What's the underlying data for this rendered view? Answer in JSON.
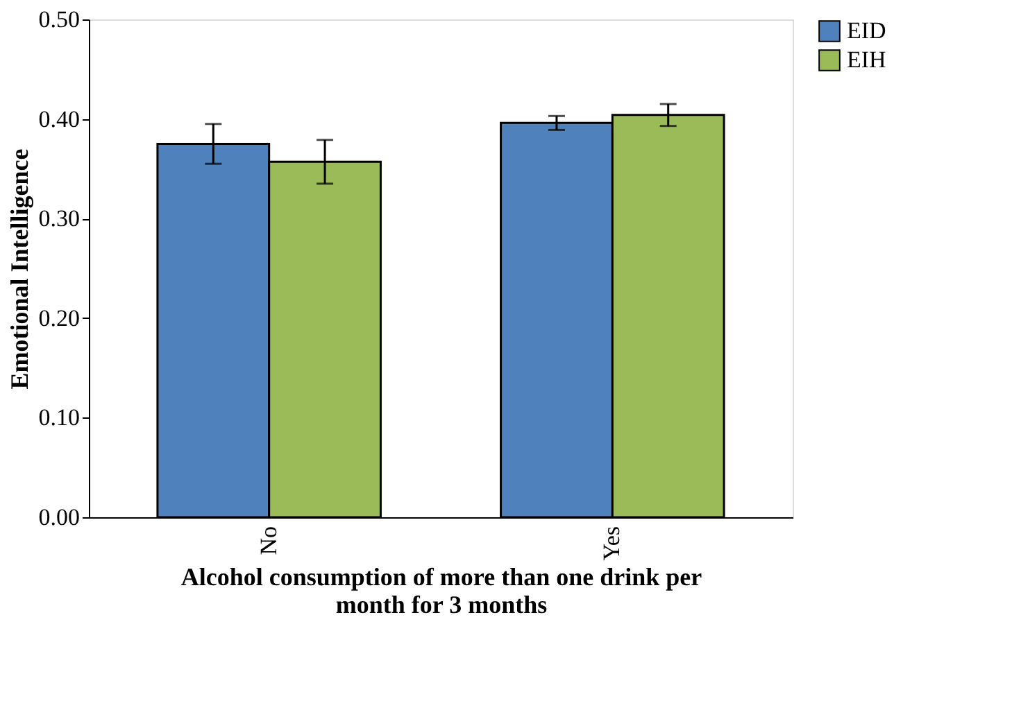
{
  "chart_data": {
    "type": "bar",
    "categories": [
      "No",
      "Yes"
    ],
    "xlabel": "Alcohol consumption of more than one drink per month for 3 months",
    "ylabel": "Emotional Intelligence",
    "series": [
      {
        "name": "EID",
        "color": "#4f81bd",
        "values": [
          0.375,
          0.396
        ],
        "errors": [
          0.02,
          0.007
        ]
      },
      {
        "name": "EIH",
        "color": "#9bbb59",
        "values": [
          0.357,
          0.404
        ],
        "errors": [
          0.022,
          0.011
        ]
      }
    ],
    "ylim": [
      0,
      0.5
    ],
    "yticks": [
      {
        "value": 0,
        "label": "0.00"
      },
      {
        "value": 0.1,
        "label": "0.10"
      },
      {
        "value": 0.2,
        "label": "0.20"
      },
      {
        "value": 0.3,
        "label": "0.30"
      },
      {
        "value": 0.4,
        "label": "0.40"
      },
      {
        "value": 0.5,
        "label": "0.50"
      }
    ],
    "grid": false,
    "legend": "right"
  }
}
